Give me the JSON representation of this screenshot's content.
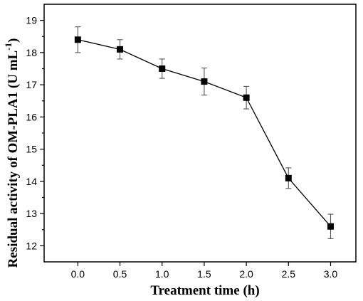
{
  "chart_data": {
    "type": "line",
    "xlabel": "Treatment time (h)",
    "ylabel_main": "Residual activity of OM-PLA1 (U mL",
    "ylabel_sup": "-1",
    "ylabel_close": ")",
    "xlim": [
      -0.4,
      3.3
    ],
    "ylim": [
      11.5,
      19.5
    ],
    "xticks": [
      "0.0",
      "0.5",
      "1.0",
      "1.5",
      "2.0",
      "2.5",
      "3.0"
    ],
    "yticks": [
      "12",
      "13",
      "14",
      "15",
      "16",
      "17",
      "18",
      "19"
    ],
    "series": [
      {
        "x": [
          0.0,
          0.5,
          1.0,
          1.5,
          2.0,
          2.5,
          3.0
        ],
        "y": [
          18.4,
          18.1,
          17.5,
          17.1,
          16.6,
          14.1,
          12.6
        ],
        "error": [
          0.4,
          0.3,
          0.3,
          0.42,
          0.35,
          0.32,
          0.38
        ]
      }
    ],
    "colors": {
      "line": "#000000",
      "error_bar": "#555555"
    },
    "marker": "square"
  }
}
